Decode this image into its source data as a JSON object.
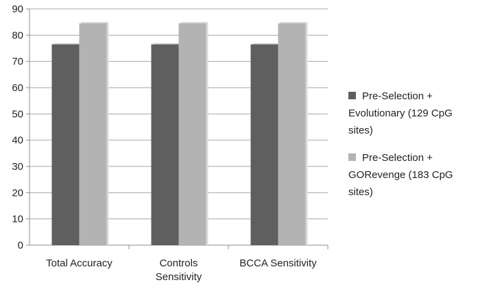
{
  "chart_data": {
    "type": "bar",
    "categories": [
      "Total Accuracy",
      "Controls Sensitivity",
      "BCCA Sensitivity"
    ],
    "category_label_lines": [
      [
        "Total Accuracy"
      ],
      [
        "Controls",
        "Sensitivity"
      ],
      [
        "BCCA Sensitivity"
      ]
    ],
    "series": [
      {
        "name": "Pre-Selection + Evolutionary (129 CpG sites)",
        "legend_lines": [
          "Pre-Selection  +",
          "Evolutionary (129 CpG",
          "sites)"
        ],
        "color": "#5f5f5f",
        "values": [
          76.5,
          76.5,
          76.5
        ]
      },
      {
        "name": "Pre-Selection + GORevenge (183 CpG sites)",
        "legend_lines": [
          "Pre-Selection  +",
          "GORevenge (183 CpG",
          "sites)"
        ],
        "color": "#b3b3b3",
        "values": [
          84.5,
          84.5,
          84.5
        ]
      }
    ],
    "ylim": [
      0,
      90
    ],
    "yticks": [
      0,
      10,
      20,
      30,
      40,
      50,
      60,
      70,
      80,
      90
    ],
    "grid": true,
    "legend_position": "right",
    "title": "",
    "xlabel": "",
    "ylabel": ""
  }
}
